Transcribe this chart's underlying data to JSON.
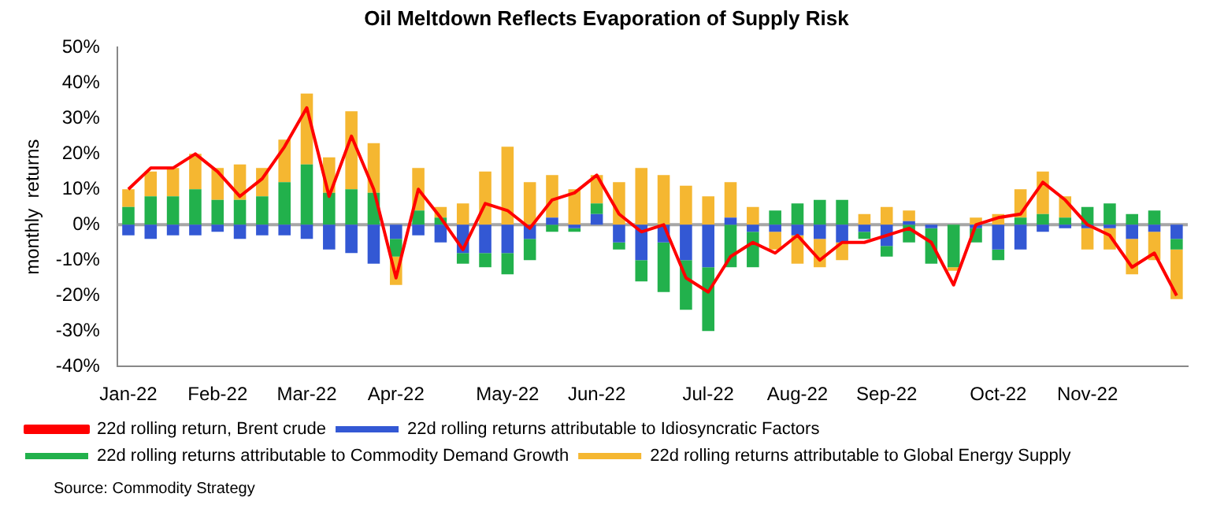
{
  "chart_data": {
    "type": "bar",
    "title": "Oil Meltdown Reflects Evaporation of Supply Risk",
    "ylabel": "monthly  returns",
    "categories": [
      "Jan-22",
      null,
      null,
      null,
      "Feb-22",
      null,
      null,
      null,
      "Mar-22",
      null,
      null,
      null,
      "Apr-22",
      null,
      null,
      null,
      null,
      "May-22",
      null,
      null,
      null,
      "Jun-22",
      null,
      null,
      null,
      null,
      "Jul-22",
      null,
      null,
      null,
      "Aug-22",
      null,
      null,
      null,
      "Sep-22",
      null,
      null,
      null,
      null,
      "Oct-22",
      null,
      null,
      null,
      "Nov-22",
      null,
      null,
      null,
      null
    ],
    "series": [
      {
        "name": "22d rolling returns attributable to Idiosyncratic Factors",
        "color": "#3358d4",
        "values": [
          -3,
          -4,
          -3,
          -3,
          -2,
          -4,
          -3,
          -3,
          -4,
          -7,
          -8,
          -11,
          -4,
          -3,
          -5,
          -8,
          -8,
          -8,
          -4,
          2,
          -1,
          3,
          -5,
          -10,
          -5,
          -10,
          -12,
          2,
          -2,
          -2,
          -3,
          -4,
          -5,
          -2,
          -6,
          1,
          -1,
          0,
          -1,
          -7,
          -7,
          -2,
          -1,
          -1,
          -1,
          -4,
          -2,
          -4
        ]
      },
      {
        "name": "22d rolling returns attributable to Commodity Demand Growth",
        "color": "#22b14c",
        "values": [
          5,
          8,
          8,
          10,
          7,
          7,
          8,
          12,
          17,
          9,
          10,
          9,
          -5,
          4,
          2,
          -3,
          -4,
          -6,
          -6,
          -2,
          -1,
          3,
          -2,
          -6,
          -14,
          -14,
          -18,
          -12,
          -10,
          4,
          6,
          7,
          7,
          -2,
          -3,
          -5,
          -10,
          -12,
          -4,
          -3,
          2,
          3,
          2,
          5,
          6,
          3,
          4,
          -3
        ]
      },
      {
        "name": "22d rolling returns attributable to Global Energy Supply",
        "color": "#f5b731",
        "values": [
          5,
          7,
          8,
          10,
          9,
          10,
          8,
          12,
          20,
          10,
          22,
          14,
          -8,
          12,
          3,
          6,
          15,
          22,
          12,
          12,
          10,
          8,
          12,
          16,
          14,
          11,
          8,
          10,
          5,
          -5,
          -8,
          -8,
          -5,
          3,
          5,
          3,
          0,
          -1,
          2,
          3,
          8,
          12,
          6,
          -6,
          -6,
          -10,
          -8,
          -14
        ]
      },
      {
        "name": "22d rolling return, Brent crude",
        "type": "line",
        "color": "#ff0000",
        "values": [
          10,
          16,
          16,
          20,
          15,
          8,
          13,
          22,
          33,
          8,
          25,
          10,
          -15,
          10,
          2,
          -7,
          6,
          4,
          -1,
          7,
          9,
          14,
          3,
          -2,
          0,
          -15,
          -19,
          -9,
          -5,
          -8,
          -3,
          -10,
          -5,
          -5,
          -3,
          -1,
          -5,
          -17,
          0,
          2,
          3,
          12,
          7,
          0,
          -3,
          -12,
          -8,
          -20
        ]
      }
    ],
    "stacked": true,
    "ylim": [
      -40,
      50
    ],
    "yticks": [
      {
        "value": -40,
        "label": "-40%"
      },
      {
        "value": -30,
        "label": "-30%"
      },
      {
        "value": -20,
        "label": "-20%"
      },
      {
        "value": -10,
        "label": "-10%"
      },
      {
        "value": 0,
        "label": "0%"
      },
      {
        "value": 10,
        "label": "10%"
      },
      {
        "value": 20,
        "label": "20%"
      },
      {
        "value": 30,
        "label": "30%"
      },
      {
        "value": 40,
        "label": "40%"
      },
      {
        "value": 50,
        "label": "50%"
      }
    ],
    "ref_lines": [
      {
        "axis": "y",
        "value": 0,
        "color": "#a6a6a6"
      }
    ],
    "grid": false,
    "legend": "bottom",
    "marker": "none",
    "annotations": [
      "Source: Commodity Strategy"
    ]
  }
}
